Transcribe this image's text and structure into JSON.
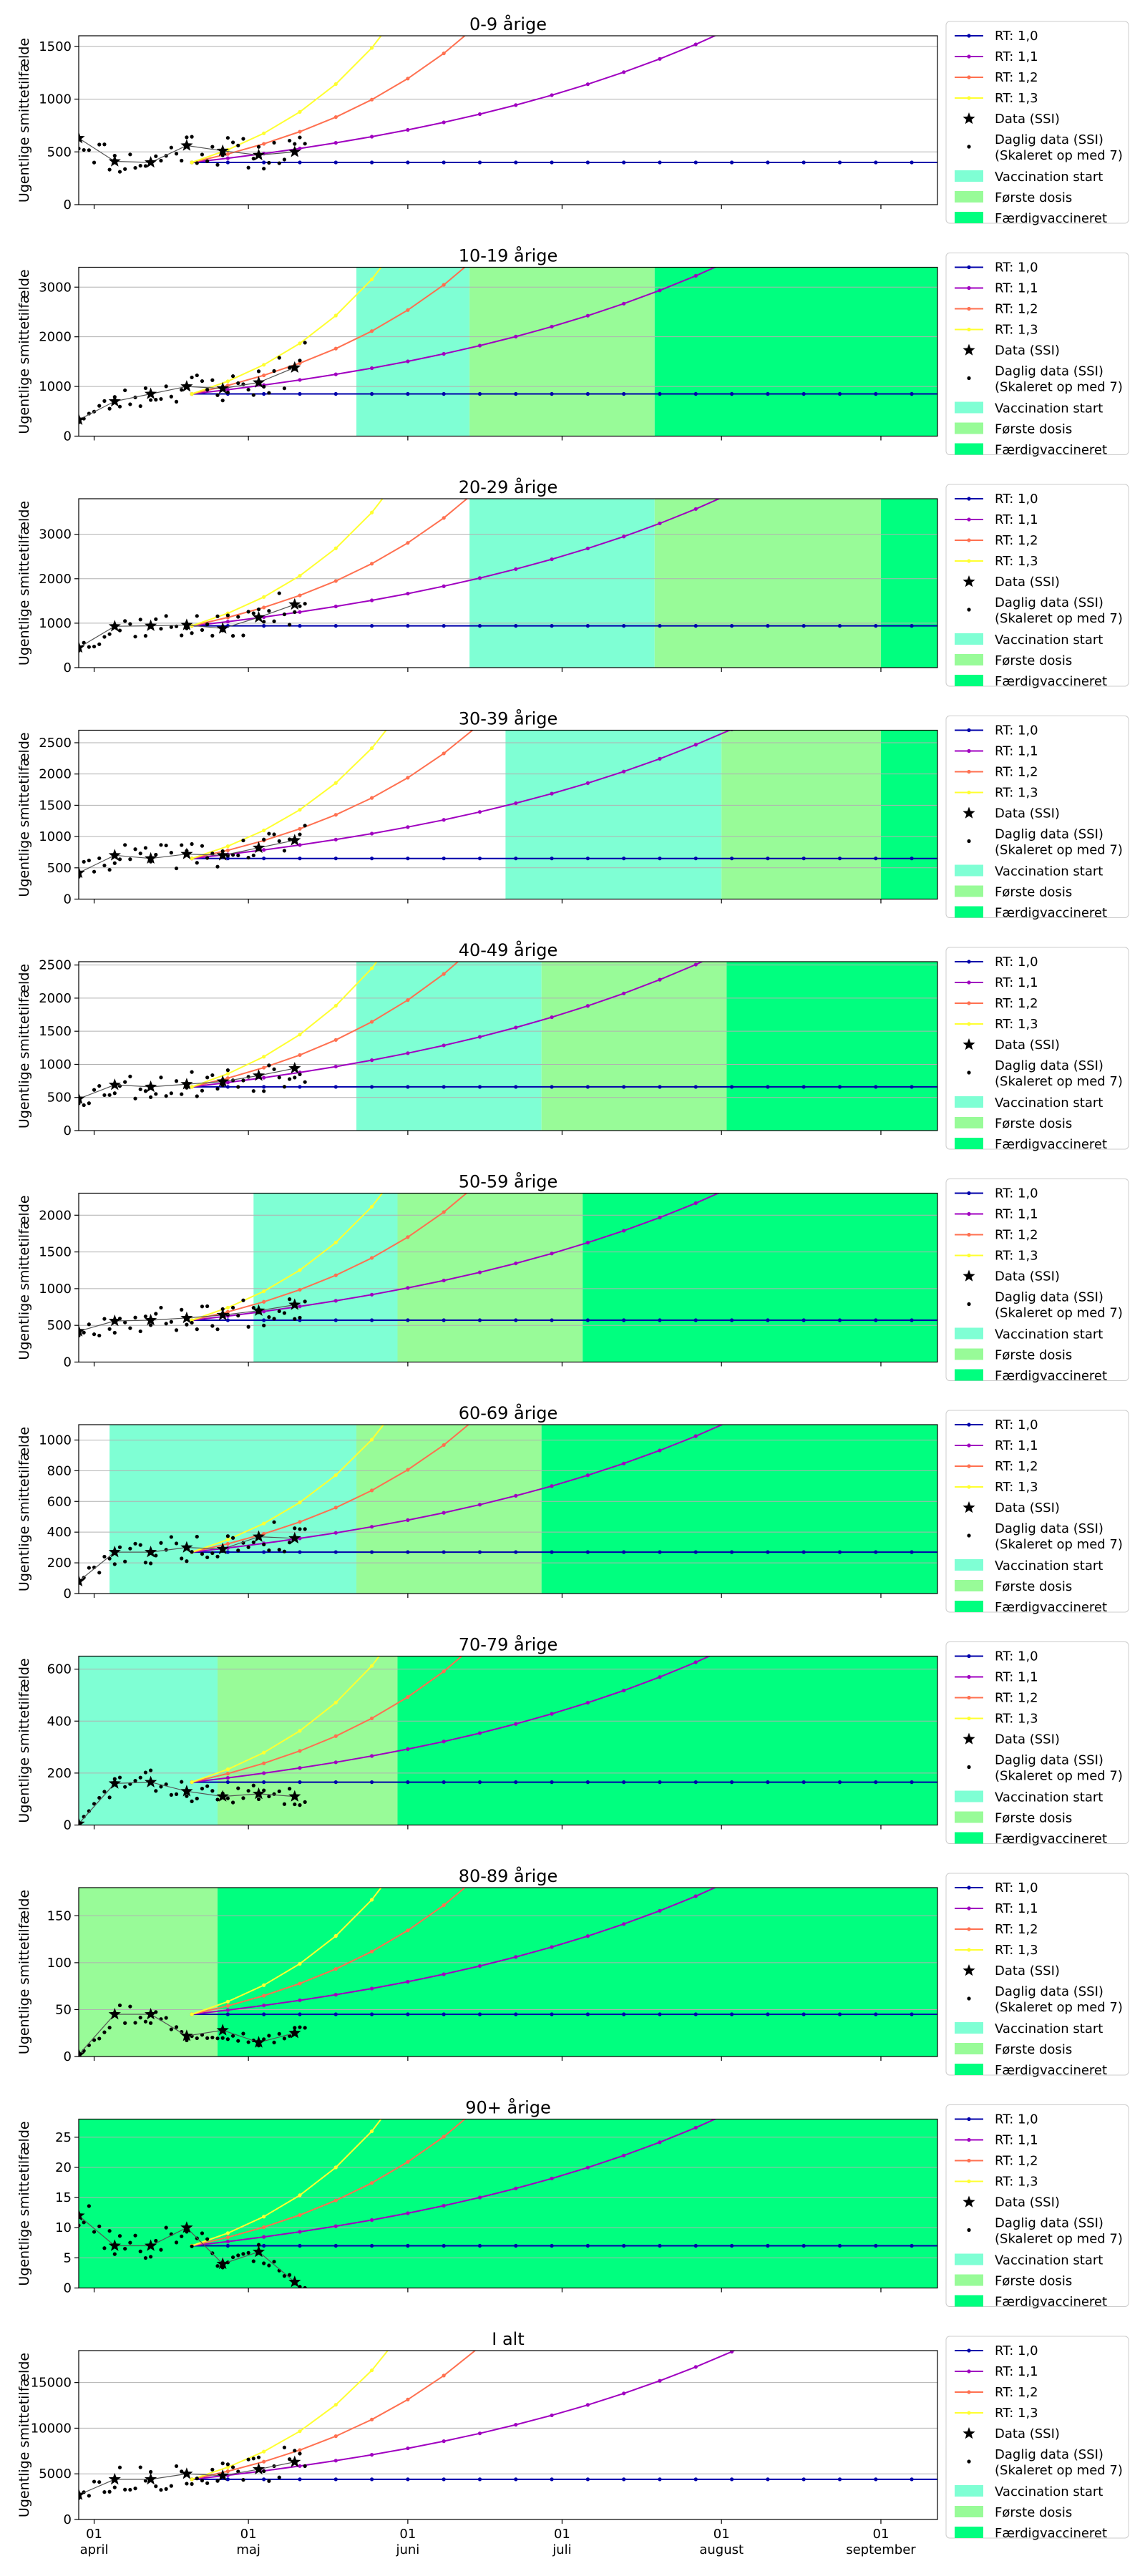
{
  "chart_data": {
    "type": "line",
    "ylabel": "Ugentlige smittetilfælde",
    "x_ticks": [
      {
        "date": "2021-04-01",
        "day": "01",
        "month": "april"
      },
      {
        "date": "2021-05-01",
        "day": "01",
        "month": "maj"
      },
      {
        "date": "2021-06-01",
        "day": "01",
        "month": "juni"
      },
      {
        "date": "2021-07-01",
        "day": "01",
        "month": "juli"
      },
      {
        "date": "2021-08-01",
        "day": "01",
        "month": "august"
      },
      {
        "date": "2021-09-01",
        "day": "01",
        "month": "september"
      }
    ],
    "x_range": [
      "2021-03-29",
      "2021-09-12"
    ],
    "model_start_date": "2021-04-20",
    "grid": "y",
    "legend_position": "outside right",
    "series_colors": {
      "RT: 1,0": "#0000aa",
      "RT: 1,1": "#a000c0",
      "RT: 1,2": "#ff7050",
      "RT: 1,3": "#ffff30"
    },
    "legend": [
      {
        "label": "RT: 1,0",
        "kind": "line",
        "color": "#0000aa"
      },
      {
        "label": "RT: 1,1",
        "kind": "line",
        "color": "#a000c0"
      },
      {
        "label": "RT: 1,2",
        "kind": "line",
        "color": "#ff7050"
      },
      {
        "label": "RT: 1,3",
        "kind": "line",
        "color": "#ffff30"
      },
      {
        "label": "Data (SSI)",
        "kind": "star"
      },
      {
        "label": "Daglig data (SSI)\n(Skaleret op med 7)",
        "kind": "dot"
      },
      {
        "label": "Vaccination start",
        "kind": "patch",
        "color": "#7fffd4"
      },
      {
        "label": "Første dosis",
        "kind": "patch",
        "color": "#98fb98"
      },
      {
        "label": "Færdigvaccineret",
        "kind": "patch",
        "color": "#00ff7f"
      }
    ],
    "phase_colors": {
      "Vaccination start": "#7fffd4",
      "Første dosis": "#98fb98",
      "Færdigvaccineret": "#00ff7f"
    },
    "panels": [
      {
        "title": "0-9 årige",
        "ylim": [
          0,
          1600
        ],
        "yticks": [
          0,
          500,
          1000,
          1500
        ],
        "base": 400,
        "weekly": [
          [
            0,
            630
          ],
          [
            7,
            410
          ],
          [
            14,
            400
          ],
          [
            21,
            560
          ],
          [
            28,
            510
          ],
          [
            35,
            470
          ],
          [
            42,
            500
          ]
        ],
        "phases": [],
        "daily_seed": 11
      },
      {
        "title": "10-19 årige",
        "ylim": [
          0,
          3400
        ],
        "yticks": [
          0,
          1000,
          2000,
          3000
        ],
        "base": 850,
        "weekly": [
          [
            0,
            330
          ],
          [
            7,
            700
          ],
          [
            14,
            850
          ],
          [
            21,
            1000
          ],
          [
            28,
            960
          ],
          [
            35,
            1080
          ],
          [
            42,
            1380
          ]
        ],
        "phases": [
          [
            "2021-05-22",
            "2021-06-13",
            "Vaccination start"
          ],
          [
            "2021-06-13",
            "2021-07-19",
            "Første dosis"
          ],
          [
            "2021-07-19",
            "2021-09-12",
            "Færdigvaccineret"
          ]
        ],
        "daily_seed": 23
      },
      {
        "title": "20-29 årige",
        "ylim": [
          0,
          3800
        ],
        "yticks": [
          0,
          1000,
          2000,
          3000
        ],
        "base": 940,
        "weekly": [
          [
            0,
            450
          ],
          [
            7,
            930
          ],
          [
            14,
            940
          ],
          [
            21,
            960
          ],
          [
            28,
            880
          ],
          [
            35,
            1130
          ],
          [
            42,
            1420
          ]
        ],
        "phases": [
          [
            "2021-06-13",
            "2021-07-19",
            "Vaccination start"
          ],
          [
            "2021-07-19",
            "2021-09-01",
            "Første dosis"
          ],
          [
            "2021-09-01",
            "2021-09-12",
            "Færdigvaccineret"
          ]
        ],
        "daily_seed": 37
      },
      {
        "title": "30-39 årige",
        "ylim": [
          0,
          2700
        ],
        "yticks": [
          0,
          500,
          1000,
          1500,
          2000,
          2500
        ],
        "base": 650,
        "weekly": [
          [
            0,
            420
          ],
          [
            7,
            700
          ],
          [
            14,
            650
          ],
          [
            21,
            720
          ],
          [
            28,
            700
          ],
          [
            35,
            820
          ],
          [
            42,
            940
          ]
        ],
        "phases": [
          [
            "2021-06-20",
            "2021-08-01",
            "Vaccination start"
          ],
          [
            "2021-08-01",
            "2021-09-01",
            "Første dosis"
          ],
          [
            "2021-09-01",
            "2021-09-12",
            "Færdigvaccineret"
          ]
        ],
        "daily_seed": 41
      },
      {
        "title": "40-49 årige",
        "ylim": [
          0,
          2550
        ],
        "yticks": [
          0,
          500,
          1000,
          1500,
          2000,
          2500
        ],
        "base": 660,
        "weekly": [
          [
            0,
            480
          ],
          [
            7,
            690
          ],
          [
            14,
            660
          ],
          [
            21,
            700
          ],
          [
            28,
            740
          ],
          [
            35,
            830
          ],
          [
            42,
            940
          ]
        ],
        "phases": [
          [
            "2021-05-22",
            "2021-06-27",
            "Vaccination start"
          ],
          [
            "2021-06-27",
            "2021-08-02",
            "Første dosis"
          ],
          [
            "2021-08-02",
            "2021-09-12",
            "Færdigvaccineret"
          ]
        ],
        "daily_seed": 53
      },
      {
        "title": "50-59 årige",
        "ylim": [
          0,
          2300
        ],
        "yticks": [
          0,
          500,
          1000,
          1500,
          2000
        ],
        "base": 570,
        "weekly": [
          [
            0,
            420
          ],
          [
            7,
            560
          ],
          [
            14,
            570
          ],
          [
            21,
            600
          ],
          [
            28,
            640
          ],
          [
            35,
            700
          ],
          [
            42,
            780
          ]
        ],
        "phases": [
          [
            "2021-05-02",
            "2021-05-30",
            "Vaccination start"
          ],
          [
            "2021-05-30",
            "2021-07-05",
            "Første dosis"
          ],
          [
            "2021-07-05",
            "2021-09-12",
            "Færdigvaccineret"
          ]
        ],
        "daily_seed": 67
      },
      {
        "title": "60-69 årige",
        "ylim": [
          0,
          1100
        ],
        "yticks": [
          0,
          200,
          400,
          600,
          800,
          1000
        ],
        "base": 270,
        "weekly": [
          [
            0,
            80
          ],
          [
            7,
            270
          ],
          [
            14,
            270
          ],
          [
            21,
            300
          ],
          [
            28,
            290
          ],
          [
            35,
            370
          ],
          [
            42,
            360
          ]
        ],
        "phases": [
          [
            "2021-04-04",
            "2021-05-22",
            "Vaccination start"
          ],
          [
            "2021-05-22",
            "2021-06-27",
            "Første dosis"
          ],
          [
            "2021-06-27",
            "2021-09-12",
            "Færdigvaccineret"
          ]
        ],
        "daily_seed": 79
      },
      {
        "title": "70-79 årige",
        "ylim": [
          0,
          650
        ],
        "yticks": [
          0,
          200,
          400,
          600
        ],
        "base": 165,
        "weekly": [
          [
            0,
            5
          ],
          [
            7,
            160
          ],
          [
            14,
            165
          ],
          [
            21,
            130
          ],
          [
            28,
            110
          ],
          [
            35,
            120
          ],
          [
            42,
            110
          ]
        ],
        "phases": [
          [
            "2021-03-29",
            "2021-04-25",
            "Vaccination start"
          ],
          [
            "2021-04-25",
            "2021-05-30",
            "Første dosis"
          ],
          [
            "2021-05-30",
            "2021-09-12",
            "Færdigvaccineret"
          ]
        ],
        "daily_seed": 83
      },
      {
        "title": "80-89 årige",
        "ylim": [
          0,
          180
        ],
        "yticks": [
          0,
          50,
          100,
          150
        ],
        "base": 45,
        "weekly": [
          [
            0,
            2
          ],
          [
            7,
            45
          ],
          [
            14,
            45
          ],
          [
            21,
            22
          ],
          [
            28,
            28
          ],
          [
            35,
            15
          ],
          [
            42,
            25
          ]
        ],
        "phases": [
          [
            "2021-03-29",
            "2021-04-25",
            "Første dosis"
          ],
          [
            "2021-04-25",
            "2021-09-12",
            "Færdigvaccineret"
          ]
        ],
        "daily_seed": 97
      },
      {
        "title": "90+ årige",
        "ylim": [
          0,
          28
        ],
        "yticks": [
          0,
          5,
          10,
          15,
          20,
          25
        ],
        "base": 7,
        "weekly": [
          [
            0,
            12
          ],
          [
            7,
            7
          ],
          [
            14,
            7
          ],
          [
            21,
            10
          ],
          [
            28,
            4
          ],
          [
            35,
            6
          ],
          [
            42,
            1
          ]
        ],
        "phases": [
          [
            "2021-03-29",
            "2021-09-12",
            "Færdigvaccineret"
          ]
        ],
        "daily_seed": 101
      },
      {
        "title": "I alt",
        "ylim": [
          0,
          18500
        ],
        "yticks": [
          0,
          5000,
          10000,
          15000
        ],
        "base": 4400,
        "weekly": [
          [
            0,
            2700
          ],
          [
            7,
            4400
          ],
          [
            14,
            4400
          ],
          [
            21,
            5000
          ],
          [
            28,
            4800
          ],
          [
            35,
            5500
          ],
          [
            42,
            6300
          ]
        ],
        "phases": [],
        "daily_seed": 113
      }
    ]
  }
}
